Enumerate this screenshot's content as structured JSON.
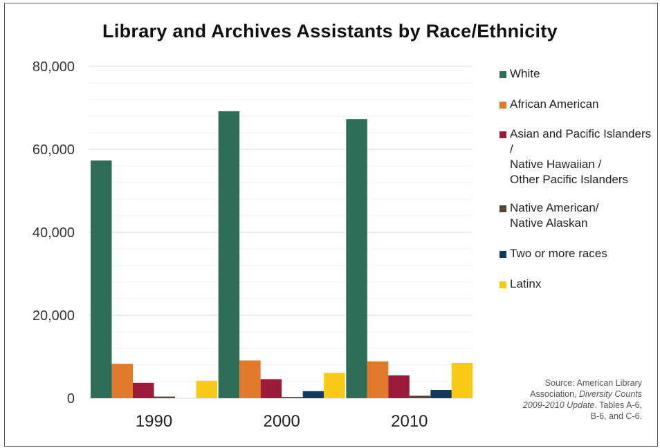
{
  "chart_data": {
    "type": "bar",
    "title": "Library and Archives Assistants by Race/Ethnicity",
    "categories": [
      "1990",
      "2000",
      "2010"
    ],
    "ylim": [
      0,
      80000
    ],
    "yticks": [
      "80,000",
      "60,000",
      "40,000",
      "20,000",
      "0"
    ],
    "ytick_values": [
      80000,
      60000,
      40000,
      20000,
      0
    ],
    "grid": true,
    "legend_position": "right",
    "series": [
      {
        "name": "White",
        "color": "#2e6e58",
        "values": [
          57300,
          69200,
          67300
        ]
      },
      {
        "name": "African American",
        "color": "#e07a2a",
        "values": [
          8300,
          9100,
          8900
        ]
      },
      {
        "name": "Asian and Pacific Islanders /\nNative Hawaiian /\nOther Pacific Islanders",
        "color": "#9c1b3b",
        "values": [
          3700,
          4600,
          5500
        ]
      },
      {
        "name": "Native American/\nNative Alaskan",
        "color": "#5a4636",
        "values": [
          400,
          300,
          600
        ]
      },
      {
        "name": "Two or more races",
        "color": "#12395e",
        "values": [
          0,
          1700,
          2000
        ]
      },
      {
        "name": "Latinx",
        "color": "#f7cb15",
        "values": [
          4200,
          6100,
          8500
        ]
      }
    ]
  },
  "source": {
    "line1": "Source: American Library",
    "line2a": "Association, ",
    "line2b": "Diversity Counts",
    "line3a": "2009-2010 Update",
    "line3b": ". Tables A-6,",
    "line4": "B-6, and C-6."
  }
}
